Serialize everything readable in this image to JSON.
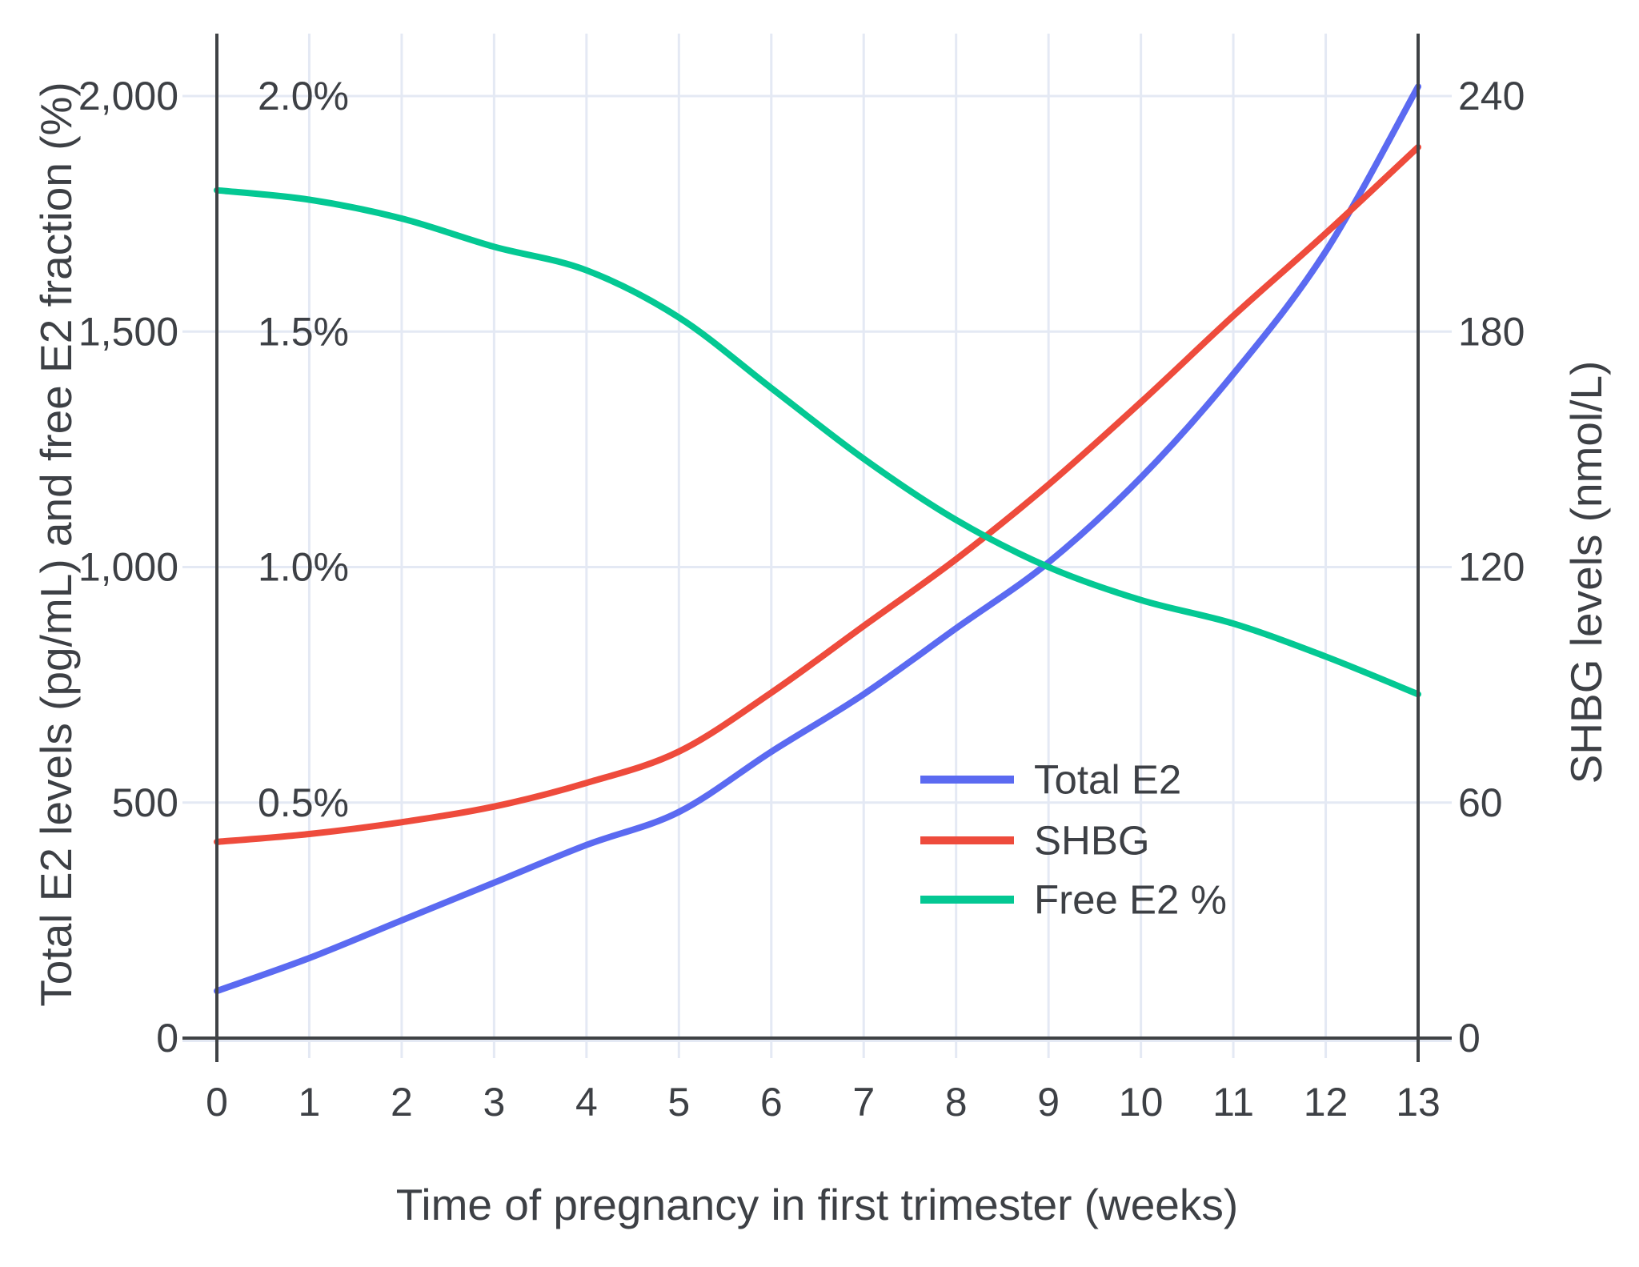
{
  "chart_data": {
    "type": "line",
    "x": [
      0,
      1,
      2,
      3,
      4,
      5,
      6,
      7,
      8,
      9,
      10,
      11,
      12,
      13
    ],
    "x_axis": {
      "title": "Time of pregnancy in first trimester (weeks)",
      "ticks": [
        "0",
        "1",
        "2",
        "3",
        "4",
        "5",
        "6",
        "7",
        "8",
        "9",
        "10",
        "11",
        "12",
        "13"
      ]
    },
    "left_axis": {
      "title": "Total E2 levels (pg/mL) and free E2 fraction (%)",
      "range": [
        0,
        2000
      ],
      "ticks": [
        {
          "value": 0,
          "label": "0",
          "percent_label": ""
        },
        {
          "value": 500,
          "label": "500",
          "percent_label": "0.5%"
        },
        {
          "value": 1000,
          "label": "1,000",
          "percent_label": "1.0%"
        },
        {
          "value": 1500,
          "label": "1,500",
          "percent_label": "1.5%"
        },
        {
          "value": 2000,
          "label": "2,000",
          "percent_label": "2.0%"
        }
      ]
    },
    "right_axis": {
      "title": "SHBG levels (nmol/L)",
      "range": [
        0,
        240
      ],
      "ticks": [
        {
          "value": 0,
          "label": "0"
        },
        {
          "value": 60,
          "label": "60"
        },
        {
          "value": 120,
          "label": "120"
        },
        {
          "value": 180,
          "label": "180"
        },
        {
          "value": 240,
          "label": "240"
        }
      ]
    },
    "series": [
      {
        "name": "Total E2",
        "unit": "pg/mL",
        "axis": "left",
        "color": "#5b6af1",
        "values": [
          100,
          170,
          250,
          330,
          410,
          480,
          608,
          730,
          870,
          1010,
          1190,
          1410,
          1670,
          2020
        ]
      },
      {
        "name": "SHBG",
        "unit": "nmol/L",
        "axis": "right",
        "color": "#ee4b3c",
        "values": [
          50,
          52,
          55,
          59,
          65,
          73,
          88,
          105,
          122,
          141,
          162,
          184,
          205,
          227
        ]
      },
      {
        "name": "Free E2 %",
        "unit": "%",
        "axis": "percent",
        "color": "#04c893",
        "values": [
          1.8,
          1.78,
          1.74,
          1.68,
          1.63,
          1.53,
          1.38,
          1.23,
          1.1,
          1.0,
          0.93,
          0.88,
          0.81,
          0.73
        ]
      }
    ],
    "legend": {
      "position": "inside-right",
      "items": [
        "Total E2",
        "SHBG",
        "Free E2 %"
      ]
    },
    "grid": true,
    "colors": {
      "grid": "#e4e9f4",
      "axis": "#3f4245",
      "text": "#3d4045",
      "background": "#ffffff"
    }
  }
}
